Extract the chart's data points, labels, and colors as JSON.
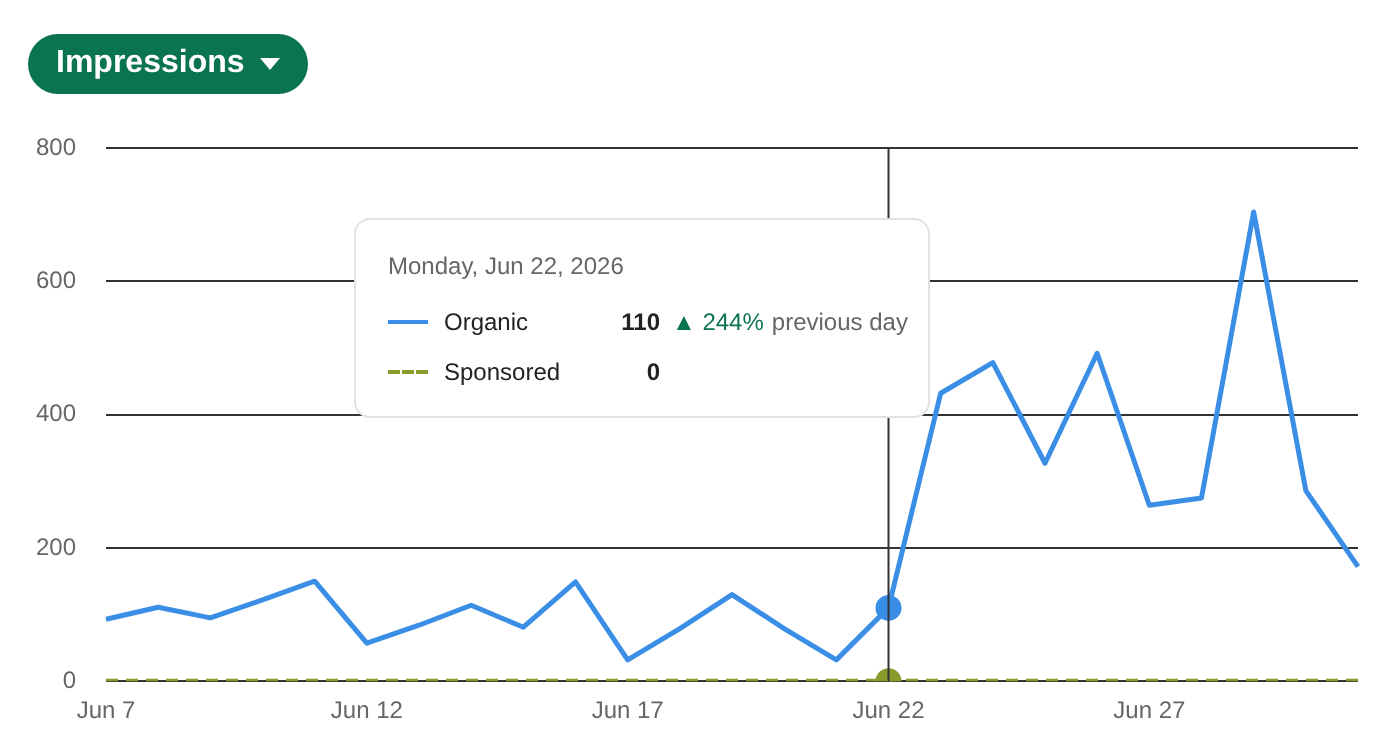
{
  "chart_data": {
    "type": "line",
    "title": "Impressions",
    "categories": [
      "Jun 7",
      null,
      null,
      null,
      null,
      "Jun 12",
      null,
      null,
      null,
      null,
      "Jun 17",
      null,
      null,
      null,
      null,
      "Jun 22",
      null,
      null,
      null,
      null,
      "Jun 27",
      null,
      null,
      null,
      null
    ],
    "series": [
      {
        "name": "Organic",
        "color": "#3a8ee6",
        "line_style": "solid",
        "values": [
          93,
          111,
          95,
          122,
          150,
          57,
          84,
          114,
          81,
          149,
          32,
          79,
          130,
          79,
          32,
          110,
          432,
          478,
          327,
          492,
          264,
          275,
          704,
          286,
          172
        ]
      },
      {
        "name": "Sponsored",
        "color": "#8a9a2b",
        "line_style": "dashed",
        "values": [
          0,
          0,
          0,
          0,
          0,
          0,
          0,
          0,
          0,
          0,
          0,
          0,
          0,
          0,
          0,
          0,
          0,
          0,
          0,
          0,
          0,
          0,
          0,
          0,
          0
        ]
      },
      {
        "type": "scatter",
        "color": "#3a8ee6",
        "marker": "circle",
        "x": [
          "Jun 22"
        ],
        "values": [
          110
        ]
      },
      {
        "type": "scatter",
        "color": "#8a9a2b",
        "marker": "circle",
        "x": [
          "Jun 22"
        ],
        "values": [
          0
        ]
      }
    ],
    "ylim": [
      0,
      800
    ],
    "yticks": [
      0,
      200,
      400,
      600,
      800
    ],
    "grid": "y",
    "legend": "top left",
    "ref_lines": [
      {
        "axis": "x",
        "value": "Jun 22",
        "color": "#333333"
      }
    ],
    "annotations": [
      "Monday, Jun 22, 2026",
      "110",
      "▲ 244%",
      "previous day",
      "0"
    ]
  }
}
